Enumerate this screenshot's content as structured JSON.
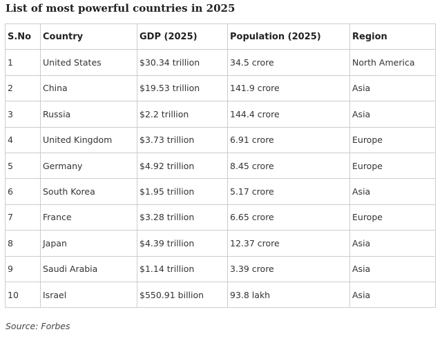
{
  "title": "List of most powerful countries in 2025",
  "table": {
    "header": [
      "S.No",
      "Country",
      "GDP (2025)",
      "Population (2025)",
      "Region"
    ],
    "rows": [
      [
        "1",
        "United States",
        "$30.34 trillion",
        "34.5 crore",
        "North America"
      ],
      [
        "2",
        "China",
        "$19.53 trillion",
        "141.9 crore",
        "Asia"
      ],
      [
        "3",
        "Russia",
        "$2.2 trillion",
        "144.4 crore",
        "Asia"
      ],
      [
        "4",
        "United Kingdom",
        "$3.73 trillion",
        "6.91 crore",
        "Europe"
      ],
      [
        "5",
        "Germany",
        "$4.92 trillion",
        "8.45 crore",
        "Europe"
      ],
      [
        "6",
        "South Korea",
        "$1.95 trillion",
        "5.17 crore",
        "Asia"
      ],
      [
        "7",
        "France",
        "$3.28 trillion",
        "6.65 crore",
        "Europe"
      ],
      [
        "8",
        "Japan",
        "$4.39 trillion",
        "12.37 crore",
        "Asia"
      ],
      [
        "9",
        "Saudi Arabia",
        "$1.14 trillion",
        "3.39 crore",
        "Asia"
      ],
      [
        "10",
        "Israel",
        "$550.91 billion",
        "93.8 lakh",
        "Asia"
      ]
    ]
  },
  "source": "Source: Forbes"
}
